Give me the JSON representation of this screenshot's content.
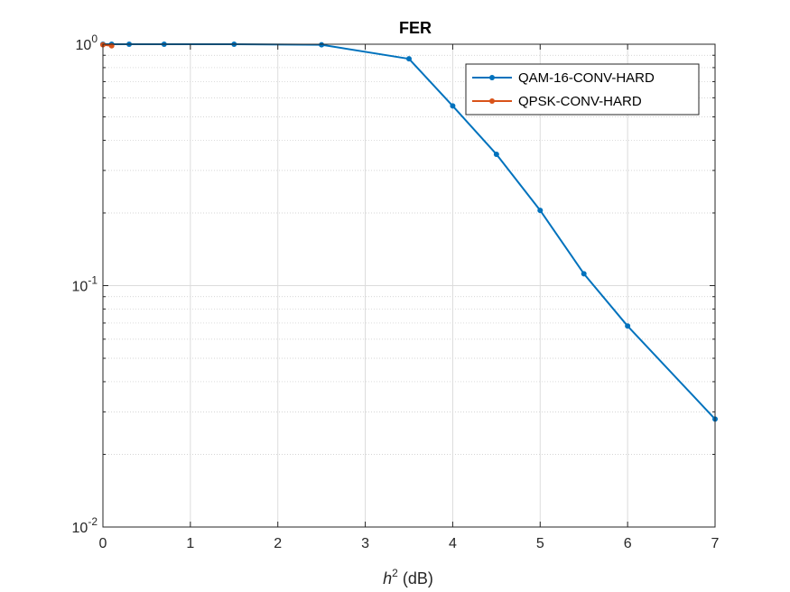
{
  "chart_data": {
    "type": "line",
    "title": "FER",
    "xlabel_base": "h",
    "xlabel_sup": "2",
    "xlabel_rest": " (dB)",
    "ylabel": "",
    "xlim": [
      0,
      7
    ],
    "ylim": [
      0.01,
      1
    ],
    "yscale": "log",
    "grid": true,
    "minor_grid": true,
    "legend_location": "top-right",
    "x_ticks": [
      "0",
      "1",
      "2",
      "3",
      "4",
      "5",
      "6",
      "7"
    ],
    "y_ticks": [
      {
        "base": "10",
        "exp": "0",
        "value": 1
      },
      {
        "base": "10",
        "exp": "-1",
        "value": 0.1
      },
      {
        "base": "10",
        "exp": "-2",
        "value": 0.01
      }
    ],
    "series": [
      {
        "name": "QAM-16-CONV-HARD",
        "color": "#0072BD",
        "marker": "dot",
        "x": [
          0,
          0.1,
          0.3,
          0.7,
          1.5,
          2.5,
          3.5,
          4.0,
          4.5,
          5.0,
          5.5,
          6.0,
          7.0
        ],
        "y": [
          1.0,
          1.0,
          1.0,
          1.0,
          1.0,
          0.995,
          0.87,
          0.555,
          0.35,
          0.205,
          0.112,
          0.068,
          0.028
        ]
      },
      {
        "name": "QPSK-CONV-HARD",
        "color": "#D95319",
        "marker": "dot",
        "x": [
          0,
          0.1
        ],
        "y": [
          0.995,
          0.985
        ]
      }
    ]
  }
}
